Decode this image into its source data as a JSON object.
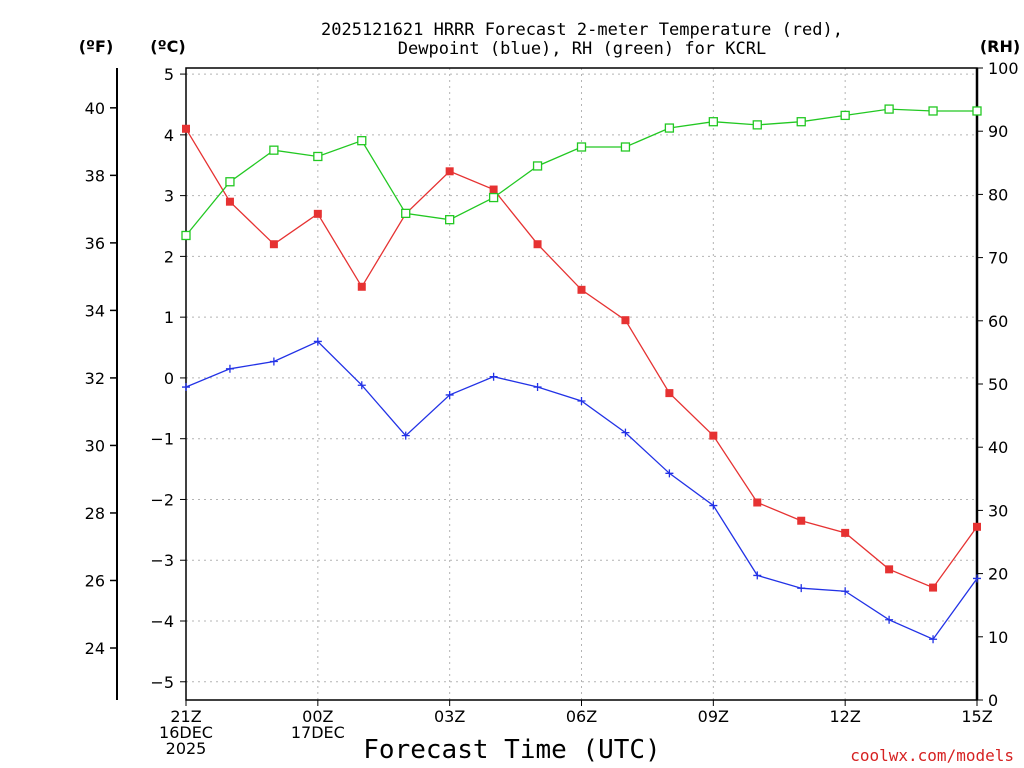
{
  "chart_data": {
    "type": "line",
    "title_line1": "2025121621 HRRR Forecast 2-meter Temperature (red),",
    "title_line2": "Dewpoint (blue), RH (green) for KCRL",
    "xlabel": "Forecast Time (UTC)",
    "unit_f": "(ºF)",
    "unit_c": "(ºC)",
    "unit_rh": "(RH)",
    "credit": "coolwx.com/models",
    "hours": [
      0,
      1,
      2,
      3,
      4,
      5,
      6,
      7,
      8,
      9,
      10,
      11,
      12,
      13,
      14,
      15,
      16,
      17,
      18
    ],
    "x_ticks": [
      {
        "hour": 0,
        "lines": [
          "21Z",
          "16DEC",
          "2025"
        ]
      },
      {
        "hour": 3,
        "lines": [
          "00Z",
          "17DEC"
        ]
      },
      {
        "hour": 6,
        "lines": [
          "03Z"
        ]
      },
      {
        "hour": 9,
        "lines": [
          "06Z"
        ]
      },
      {
        "hour": 12,
        "lines": [
          "09Z"
        ]
      },
      {
        "hour": 15,
        "lines": [
          "12Z"
        ]
      },
      {
        "hour": 18,
        "lines": [
          "15Z"
        ]
      }
    ],
    "y_left_celsius": {
      "range": [
        -5.3,
        5.1
      ],
      "ticks": [
        5,
        4,
        3,
        2,
        1,
        0,
        -1,
        -2,
        -3,
        -4,
        -5
      ],
      "tick_labels": [
        "5",
        "4",
        "3",
        "2",
        "1",
        "0",
        "−1",
        "−2",
        "−3",
        "−4",
        "−5"
      ]
    },
    "y_left_fahrenheit": {
      "ticks": [
        40,
        38,
        36,
        34,
        32,
        30,
        28,
        26,
        24
      ],
      "tick_labels": [
        "40",
        "38",
        "36",
        "34",
        "32",
        "30",
        "28",
        "26",
        "24"
      ]
    },
    "y_right_rh": {
      "range": [
        0,
        100
      ],
      "ticks": [
        100,
        90,
        80,
        70,
        60,
        50,
        40,
        30,
        20,
        10,
        0
      ],
      "tick_labels": [
        "100",
        "90",
        "80",
        "70",
        "60",
        "50",
        "40",
        "30",
        "20",
        "10",
        "0"
      ]
    },
    "series": [
      {
        "name": "Temperature",
        "unit": "C",
        "color": "#e63232",
        "marker": "filled-square",
        "values": [
          4.1,
          2.9,
          2.2,
          2.7,
          1.5,
          2.7,
          3.4,
          3.1,
          2.2,
          1.45,
          0.95,
          -0.25,
          -0.95,
          -2.05,
          -2.35,
          -2.55,
          -3.15,
          -3.45,
          -2.45
        ]
      },
      {
        "name": "Dewpoint",
        "unit": "C",
        "color": "#2232e6",
        "marker": "plus",
        "values": [
          -0.15,
          0.15,
          0.27,
          0.6,
          -0.12,
          -0.95,
          -0.28,
          0.02,
          -0.15,
          -0.38,
          -0.9,
          -1.57,
          -2.1,
          -3.25,
          -3.46,
          -3.51,
          -3.98,
          -4.3,
          -3.3
        ]
      },
      {
        "name": "RH",
        "unit": "%",
        "color": "#22c822",
        "marker": "open-square",
        "values": [
          73.5,
          82,
          87,
          86,
          88.5,
          77,
          76,
          79.5,
          84.5,
          87.5,
          87.5,
          90.5,
          91.5,
          91,
          91.5,
          92.5,
          93.5,
          93.2,
          93.2
        ]
      }
    ]
  }
}
